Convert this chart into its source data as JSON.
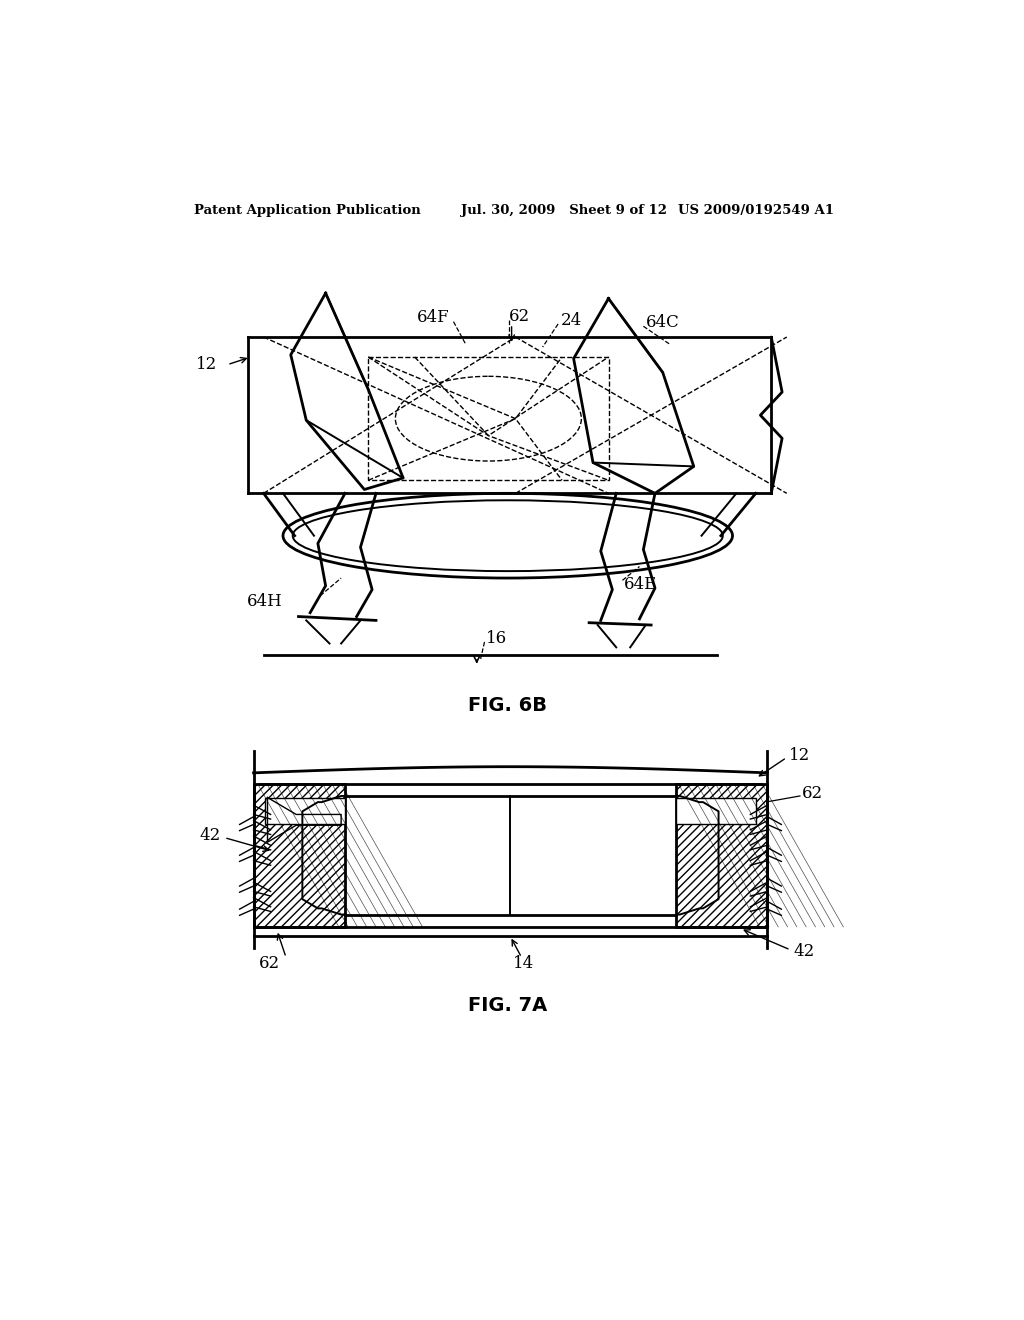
{
  "bg_color": "#ffffff",
  "header_left": "Patent Application Publication",
  "header_mid": "Jul. 30, 2009   Sheet 9 of 12",
  "header_right": "US 2009/0192549 A1",
  "fig6b_label": "FIG. 6B",
  "fig7a_label": "FIG. 7A"
}
